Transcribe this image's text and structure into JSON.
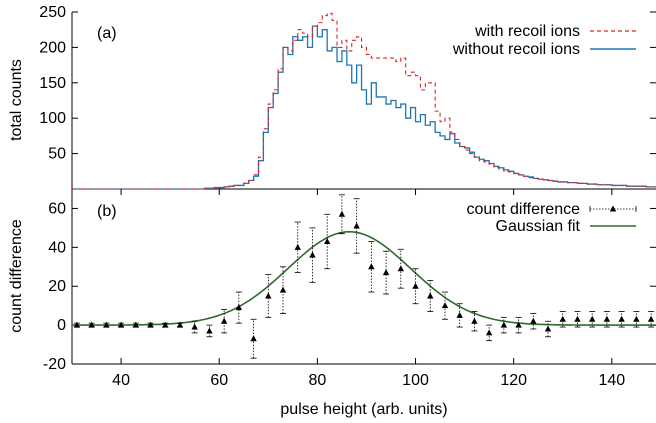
{
  "colors": {
    "with_recoil": "#d62728",
    "without_recoil": "#1f77b4",
    "gaussian": "#2e6b2e",
    "diff_points": "#000000"
  },
  "chart_data": [
    {
      "type": "line",
      "panel_label": "(a)",
      "ylabel": "total counts",
      "xlim": [
        30,
        149
      ],
      "ylim": [
        0,
        250
      ],
      "yticks": [
        50,
        100,
        150,
        200,
        250
      ],
      "legend_placement": "top-right",
      "x_start": 30,
      "bin_width": 1,
      "series": [
        {
          "name": "with recoil ions",
          "style": "dashed-step",
          "values": [
            0,
            0,
            0,
            0,
            0,
            0,
            0,
            0,
            0,
            0,
            0,
            0,
            0,
            0,
            0,
            0,
            0,
            0,
            0,
            0,
            0,
            0,
            0,
            0,
            0,
            0,
            0,
            1,
            1,
            2,
            2,
            3,
            4,
            5,
            5,
            8,
            12,
            20,
            45,
            85,
            120,
            140,
            170,
            200,
            195,
            210,
            225,
            220,
            215,
            230,
            235,
            245,
            248,
            238,
            200,
            210,
            195,
            210,
            215,
            200,
            190,
            185,
            185,
            185,
            185,
            185,
            180,
            185,
            160,
            165,
            160,
            140,
            150,
            150,
            110,
            95,
            100,
            80,
            70,
            60,
            55,
            50,
            45,
            40,
            38,
            35,
            30,
            28,
            25,
            24,
            22,
            20,
            18,
            16,
            15,
            14,
            13,
            12,
            11,
            10,
            10,
            9,
            9,
            8,
            8,
            7,
            7,
            6,
            6,
            6,
            5,
            5,
            5,
            4,
            4,
            4,
            4,
            3,
            3
          ]
        },
        {
          "name": "without recoil ions",
          "style": "solid-step",
          "values": [
            0,
            0,
            0,
            0,
            0,
            0,
            0,
            0,
            0,
            0,
            0,
            0,
            0,
            0,
            0,
            0,
            0,
            0,
            0,
            0,
            0,
            0,
            0,
            0,
            0,
            0,
            0,
            1,
            1,
            2,
            2,
            3,
            4,
            5,
            5,
            8,
            12,
            18,
            40,
            80,
            115,
            135,
            165,
            200,
            190,
            215,
            210,
            215,
            200,
            230,
            215,
            225,
            195,
            200,
            180,
            195,
            175,
            150,
            175,
            140,
            120,
            150,
            130,
            130,
            120,
            125,
            115,
            120,
            100,
            115,
            95,
            105,
            90,
            95,
            80,
            75,
            70,
            78,
            65,
            60,
            58,
            52,
            45,
            42,
            40,
            36,
            32,
            30,
            27,
            25,
            22,
            20,
            18,
            17,
            15,
            14,
            13,
            12,
            11,
            10,
            10,
            9,
            9,
            8,
            8,
            7,
            7,
            6,
            6,
            6,
            5,
            5,
            5,
            4,
            4,
            4,
            4,
            3,
            3
          ]
        }
      ]
    },
    {
      "type": "scatter",
      "panel_label": "(b)",
      "xlabel": "pulse height (arb. units)",
      "ylabel": "count difference",
      "xlim": [
        30,
        149
      ],
      "ylim": [
        -20,
        70
      ],
      "xticks": [
        40,
        60,
        80,
        100,
        120,
        140
      ],
      "yticks": [
        -20,
        0,
        20,
        40,
        60
      ],
      "legend_placement": "top-right",
      "series": [
        {
          "name": "count difference",
          "style": "points-errorbars",
          "x": [
            31,
            34,
            37,
            40,
            43,
            46,
            49,
            52,
            55,
            58,
            61,
            64,
            67,
            70,
            73,
            76,
            79,
            82,
            85,
            88,
            91,
            94,
            97,
            100,
            103,
            106,
            109,
            112,
            115,
            118,
            121,
            124,
            127,
            130,
            133,
            136,
            139,
            142,
            145,
            148
          ],
          "y": [
            0,
            0,
            0,
            0,
            0,
            0,
            0,
            0,
            -1,
            -3,
            2,
            9,
            -7,
            15,
            18,
            40,
            36,
            43,
            57,
            51,
            30,
            27,
            29,
            20,
            15,
            10,
            5,
            2,
            -4,
            0,
            0,
            2,
            -2,
            3,
            3,
            3,
            3,
            3,
            3,
            3
          ],
          "err": [
            1,
            1,
            1,
            1,
            1,
            1,
            1,
            1,
            3,
            3,
            6,
            8,
            10,
            11,
            12,
            13,
            14,
            14,
            10,
            14,
            13,
            11,
            10,
            9,
            8,
            7,
            6,
            5,
            4,
            4,
            4,
            4,
            4,
            4,
            4,
            4,
            4,
            4,
            4,
            4
          ]
        },
        {
          "name": "Gaussian fit",
          "style": "line",
          "model": {
            "amplitude": 48,
            "center": 86.5,
            "sigma": 12.5,
            "offset": 0
          }
        }
      ]
    }
  ]
}
